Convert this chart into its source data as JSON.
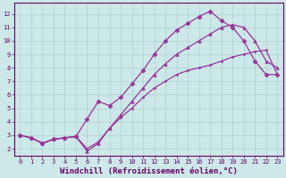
{
  "xlabel": "Windchill (Refroidissement éolien,°C)",
  "background_color": "#cce8e8",
  "grid_color": "#aacccc",
  "line_color": "#993399",
  "xlim": [
    -0.5,
    23.5
  ],
  "ylim": [
    1.5,
    12.8
  ],
  "xticks": [
    0,
    1,
    2,
    3,
    4,
    5,
    6,
    7,
    8,
    9,
    10,
    11,
    12,
    13,
    14,
    15,
    16,
    17,
    18,
    19,
    20,
    21,
    22,
    23
  ],
  "yticks": [
    2,
    3,
    4,
    5,
    6,
    7,
    8,
    9,
    10,
    11,
    12
  ],
  "curve1_x": [
    0,
    1,
    2,
    3,
    4,
    5,
    6,
    7,
    8,
    9,
    10,
    11,
    12,
    13,
    14,
    15,
    16,
    17,
    18,
    19,
    20,
    21,
    22,
    23
  ],
  "curve1_y": [
    3.0,
    2.8,
    2.4,
    2.7,
    2.8,
    2.9,
    1.8,
    2.4,
    3.5,
    4.5,
    5.5,
    6.5,
    7.5,
    8.3,
    9.0,
    9.5,
    10.0,
    10.5,
    11.0,
    11.2,
    11.0,
    10.0,
    8.5,
    8.0
  ],
  "curve2_x": [
    0,
    1,
    2,
    3,
    4,
    5,
    6,
    7,
    8,
    9,
    10,
    11,
    12,
    13,
    14,
    15,
    16,
    17,
    18,
    19,
    20,
    21,
    22,
    23
  ],
  "curve2_y": [
    3.0,
    2.8,
    2.4,
    2.7,
    2.8,
    2.9,
    4.2,
    5.5,
    5.2,
    5.8,
    6.8,
    7.8,
    9.0,
    10.0,
    10.8,
    11.3,
    11.8,
    12.2,
    11.5,
    11.0,
    10.0,
    8.5,
    7.5,
    7.5
  ],
  "curve3_x": [
    0,
    1,
    2,
    3,
    4,
    5,
    6,
    7,
    8,
    9,
    10,
    11,
    12,
    13,
    14,
    15,
    16,
    17,
    18,
    19,
    20,
    21,
    22,
    23
  ],
  "curve3_y": [
    3.0,
    2.8,
    2.4,
    2.7,
    2.8,
    2.9,
    2.0,
    2.5,
    3.5,
    4.3,
    5.0,
    5.8,
    6.5,
    7.0,
    7.5,
    7.8,
    8.0,
    8.2,
    8.5,
    8.8,
    9.0,
    9.2,
    9.3,
    7.5
  ],
  "marker": "D",
  "markersize": 2.5,
  "linewidth": 0.9,
  "tick_fontsize": 5.0,
  "xlabel_fontsize": 6.5,
  "axis_color": "#660066"
}
